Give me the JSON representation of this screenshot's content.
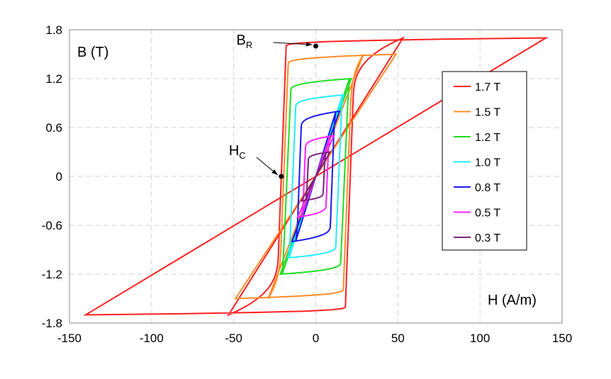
{
  "chart_data": {
    "type": "line",
    "title": "",
    "xlabel": "H (A/m)",
    "ylabel": "B (T)",
    "xlim": [
      -150,
      150
    ],
    "ylim": [
      -1.8,
      1.8
    ],
    "x_ticks": [
      "-150",
      "-100",
      "-50",
      "0",
      "50",
      "100",
      "150"
    ],
    "y_ticks": [
      "1.8",
      "1.2",
      "0.6",
      "0",
      "-0.6",
      "-1.2",
      "-1.8"
    ],
    "grid": true,
    "legend_position": "right",
    "series": [
      {
        "name": "1.7 T",
        "color": "#ff2020",
        "Bmax": 1.7,
        "Hmax": 137,
        "Hc": 21,
        "Br": 1.6
      },
      {
        "name": "1.5 T",
        "color": "#ff8c2a",
        "Bmax": 1.5,
        "Hmax": 46,
        "Hc": 19.5,
        "Br": 1.38
      },
      {
        "name": "1.2 T",
        "color": "#22dd22",
        "Bmax": 1.2,
        "Hmax": 19,
        "Hc": 17.5,
        "Br": 1.05
      },
      {
        "name": "1.0 T",
        "color": "#22eeff",
        "Bmax": 1.0,
        "Hmax": 15,
        "Hc": 14,
        "Br": 0.85
      },
      {
        "name": "0.8 T",
        "color": "#1a1aee",
        "Bmax": 0.8,
        "Hmax": 13,
        "Hc": 10,
        "Br": 0.6
      },
      {
        "name": "0.5 T",
        "color": "#ff22ff",
        "Bmax": 0.5,
        "Hmax": 10,
        "Hc": 7,
        "Br": 0.35
      },
      {
        "name": "0.3 T",
        "color": "#7a227a",
        "Bmax": 0.3,
        "Hmax": 8,
        "Hc": 5,
        "Br": 0.2
      }
    ],
    "annotations": [
      {
        "id": "br",
        "label": "B",
        "sub": "R",
        "x": 0,
        "y": 1.6
      },
      {
        "id": "hc",
        "label": "H",
        "sub": "C",
        "x": -21,
        "y": 0
      }
    ]
  }
}
